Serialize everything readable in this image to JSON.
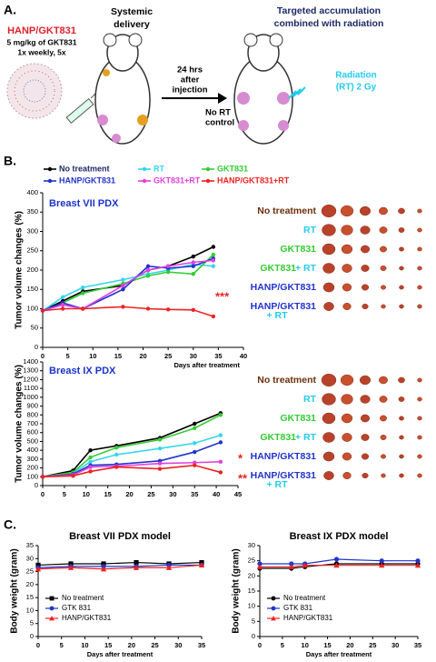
{
  "panel_labels": [
    "A.",
    "B.",
    "C."
  ],
  "schematic": {
    "formulation": "HANP/GKT831",
    "dose": "5 mg/kg  of GKT831",
    "schedule": "1x weekly, 5x",
    "delivery": [
      "Systemic",
      "delivery"
    ],
    "wait": [
      "24 hrs",
      "after",
      "injection"
    ],
    "control": [
      "No RT",
      "control"
    ],
    "accumulation": [
      "Targeted accumulation",
      "combined with radiation"
    ],
    "radiation": [
      "Radiation",
      "(RT) 2 Gy"
    ]
  },
  "chart_data": [
    {
      "type": "line",
      "title": "Breast VII PDX",
      "x_label": "Days after treatment",
      "y_label": "Tumor volume changes (%)",
      "x": [
        0,
        4,
        8,
        16,
        21,
        25,
        30,
        34
      ],
      "xlim": [
        0,
        40
      ],
      "xticks": [
        0,
        5,
        10,
        15,
        20,
        25,
        30,
        35,
        40
      ],
      "ylim": [
        0,
        400
      ],
      "yticks": [
        0,
        50,
        100,
        150,
        200,
        250,
        300,
        350,
        400
      ],
      "series": [
        {
          "name": "No treatment",
          "color": "#000000",
          "values": [
            95,
            120,
            145,
            160,
            200,
            210,
            235,
            260
          ]
        },
        {
          "name": "RT",
          "color": "#33d6f0",
          "values": [
            95,
            130,
            155,
            175,
            190,
            200,
            215,
            210
          ]
        },
        {
          "name": "GKT831",
          "color": "#33cc33",
          "values": [
            95,
            115,
            140,
            165,
            185,
            195,
            190,
            240
          ]
        },
        {
          "name": "HANP/GKT831",
          "color": "#2233cc",
          "values": [
            95,
            115,
            100,
            150,
            210,
            205,
            210,
            230
          ]
        },
        {
          "name": "GKT831+RT",
          "color": "#e040e0",
          "values": [
            95,
            110,
            100,
            160,
            200,
            210,
            220,
            225
          ]
        },
        {
          "name": "HANP/GKT831+RT",
          "color": "#ee2222",
          "values": [
            95,
            100,
            100,
            105,
            100,
            98,
            97,
            80
          ]
        }
      ],
      "annotations": [
        "***"
      ]
    },
    {
      "type": "line",
      "title": "Breast IX PDX",
      "y_label": "Tumor volume changes (%)",
      "x": [
        0,
        7,
        11,
        17,
        27,
        35,
        41
      ],
      "xlim": [
        0,
        45
      ],
      "xticks": [
        0,
        5,
        10,
        15,
        20,
        25,
        30,
        35,
        40,
        45
      ],
      "ylim": [
        0,
        1400
      ],
      "yticks": [
        0,
        100,
        200,
        300,
        400,
        500,
        600,
        700,
        800,
        900,
        1000,
        1100,
        1200,
        1300,
        1400
      ],
      "series": [
        {
          "color": "#000000",
          "values": [
            100,
            170,
            400,
            450,
            540,
            700,
            820
          ]
        },
        {
          "color": "#33d6f0",
          "values": [
            100,
            140,
            270,
            350,
            420,
            480,
            570
          ]
        },
        {
          "color": "#33cc33",
          "values": [
            100,
            150,
            320,
            430,
            520,
            650,
            800
          ]
        },
        {
          "color": "#2233cc",
          "values": [
            100,
            130,
            230,
            240,
            280,
            380,
            490
          ]
        },
        {
          "color": "#e040e0",
          "values": [
            100,
            120,
            210,
            220,
            250,
            260,
            270
          ]
        },
        {
          "color": "#ee2222",
          "values": [
            100,
            110,
            160,
            210,
            190,
            230,
            150
          ]
        }
      ],
      "annotations": [
        "*",
        "**"
      ]
    },
    {
      "type": "line",
      "title": "Breast VII PDX model",
      "x_label": "Days after treatment",
      "y_label": "Body weight (gram)",
      "x": [
        0,
        7,
        14,
        21,
        28,
        35
      ],
      "xlim": [
        0,
        35
      ],
      "xticks": [
        0,
        5,
        10,
        15,
        20,
        25,
        30,
        35
      ],
      "ylim": [
        0,
        35
      ],
      "yticks": [
        0,
        5,
        10,
        15,
        20,
        25,
        30,
        35
      ],
      "legend": "lower left",
      "series": [
        {
          "name": "No treatment",
          "color": "#000000",
          "marker": "square",
          "values": [
            27.5,
            28,
            28,
            28.5,
            28,
            28.5
          ]
        },
        {
          "name": "GTK 831",
          "color": "#2233cc",
          "marker": "circle",
          "values": [
            26.5,
            27,
            27,
            27,
            27.5,
            27.5
          ]
        },
        {
          "name": "HANP/GKT831",
          "color": "#ee2222",
          "marker": "triangle",
          "values": [
            26,
            26.5,
            26,
            26.5,
            26.5,
            27.5
          ]
        }
      ]
    },
    {
      "type": "line",
      "title": "Breast IX PDX model",
      "x_label": "Days after treatment",
      "y_label": "Body weight (gram)",
      "x": [
        0,
        7,
        10,
        17,
        27,
        35
      ],
      "xlim": [
        0,
        35
      ],
      "xticks": [
        0,
        5,
        10,
        15,
        20,
        25,
        30,
        35
      ],
      "ylim": [
        0,
        30
      ],
      "yticks": [
        0,
        5,
        10,
        15,
        20,
        25,
        30
      ],
      "legend": "lower left",
      "series": [
        {
          "name": "No treatment",
          "color": "#000000",
          "marker": "circle",
          "values": [
            22.5,
            22.5,
            23,
            24,
            24,
            24
          ]
        },
        {
          "name": "GTK 831",
          "color": "#2233cc",
          "marker": "circle",
          "values": [
            24,
            24,
            24,
            25.5,
            25,
            25
          ]
        },
        {
          "name": "HANP/GKT831",
          "color": "#ee2222",
          "marker": "triangle",
          "values": [
            23,
            23,
            23.5,
            23.5,
            23.5,
            23.5
          ]
        }
      ]
    }
  ],
  "tumor_photos": [
    [
      [
        {
          "text": "No treatment",
          "color": "#6b2e0a"
        }
      ],
      [
        {
          "text": "RT",
          "color": "#22ccee"
        }
      ],
      [
        {
          "text": "GKT831",
          "color": "#33cc33"
        }
      ],
      [
        {
          "text": "GKT831",
          "color": "#33cc33"
        },
        {
          "text": "+ RT",
          "color": "#22ccee"
        }
      ],
      [
        {
          "text": "HANP/GKT831",
          "color": "#2233cc"
        }
      ],
      [
        {
          "text": "HANP/GKT831",
          "color": "#2233cc"
        },
        {
          "text": "+ RT",
          "color": "#22ccee"
        }
      ]
    ],
    [
      [
        {
          "text": "No treatment",
          "color": "#6b2e0a"
        }
      ],
      [
        {
          "text": "RT",
          "color": "#22ccee"
        }
      ],
      [
        {
          "text": "GKT831",
          "color": "#33cc33"
        }
      ],
      [
        {
          "text": "GKT831",
          "color": "#33cc33"
        },
        {
          "text": "+ RT",
          "color": "#22ccee"
        }
      ],
      [
        {
          "text": "HANP/GKT831",
          "color": "#2233cc"
        }
      ],
      [
        {
          "text": "HANP/GKT831",
          "color": "#2233cc"
        },
        {
          "text": "+ RT",
          "color": "#22ccee"
        }
      ]
    ]
  ]
}
